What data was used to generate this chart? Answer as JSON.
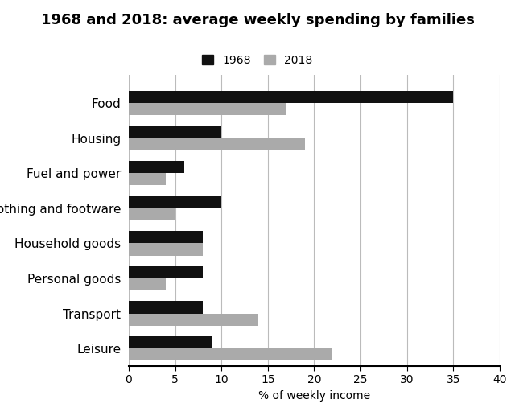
{
  "title": "1968 and 2018: average weekly spending by families",
  "xlabel": "% of weekly income",
  "categories": [
    "Food",
    "Housing",
    "Fuel and power",
    "Clothing and footware",
    "Household goods",
    "Personal goods",
    "Transport",
    "Leisure"
  ],
  "values_1968": [
    35,
    10,
    6,
    10,
    8,
    8,
    8,
    9
  ],
  "values_2018": [
    17,
    19,
    4,
    5,
    8,
    4,
    14,
    22
  ],
  "color_1968": "#111111",
  "color_2018": "#aaaaaa",
  "xlim": [
    0,
    40
  ],
  "xticks": [
    0,
    5,
    10,
    15,
    20,
    25,
    30,
    35,
    40
  ],
  "bar_height": 0.35,
  "legend_labels": [
    "1968",
    "2018"
  ],
  "background_color": "#ffffff",
  "grid_color": "#bbbbbb",
  "title_fontsize": 13,
  "label_fontsize": 10,
  "tick_fontsize": 10,
  "ytick_fontsize": 11
}
